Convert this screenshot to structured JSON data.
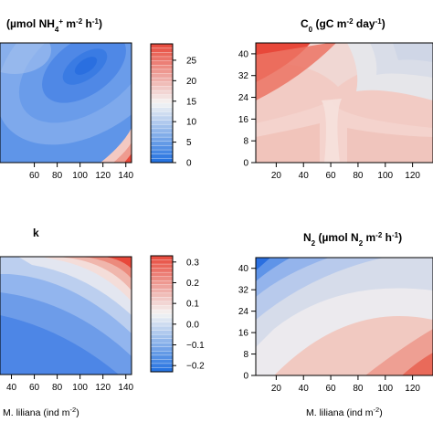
{
  "chart_data": [
    {
      "type": "heatmap",
      "panel": "top-left",
      "title": "(µmol NH",
      "title_sub": "4",
      "title_sup": "+",
      "title_rest": " m",
      "title_exp1": "-2",
      "title_tail": " h",
      "title_exp2": "-1",
      "title_close": ")",
      "x_ticks": [
        "60",
        "80",
        "100",
        "120",
        "140"
      ],
      "x_tick_values": [
        60,
        80,
        100,
        120,
        140
      ],
      "xlim": [
        30,
        145
      ],
      "ylim": [
        0,
        44
      ],
      "xlabel": "",
      "ylabel": "",
      "colorbar": {
        "ticks": [
          "0",
          "5",
          "10",
          "15",
          "20",
          "25"
        ],
        "tick_values": [
          0,
          5,
          10,
          15,
          20,
          25
        ],
        "range": [
          0,
          29
        ]
      },
      "surface": {
        "min_at": [
          112,
          30
        ],
        "note_low": "blue",
        "high_corner": "bottom-right"
      }
    },
    {
      "type": "heatmap",
      "panel": "top-right",
      "title": "C",
      "title_sub": "0",
      "title_rest": " (gC m",
      "title_exp1": "-2",
      "title_tail": " day",
      "title_exp2": "-1",
      "title_close": ")",
      "x_ticks": [
        "20",
        "40",
        "60",
        "80",
        "100",
        "120"
      ],
      "x_tick_values": [
        20,
        40,
        60,
        80,
        100,
        120
      ],
      "y_ticks": [
        "0",
        "8",
        "16",
        "24",
        "32",
        "40"
      ],
      "y_tick_values": [
        0,
        8,
        16,
        24,
        32,
        40
      ],
      "xlim": [
        5,
        135
      ],
      "ylim": [
        0,
        44
      ],
      "xlabel": "",
      "ylabel": ""
    },
    {
      "type": "heatmap",
      "panel": "bottom-left",
      "title": "k",
      "x_ticks": [
        "40",
        "60",
        "80",
        "100",
        "120",
        "140"
      ],
      "x_tick_values": [
        40,
        60,
        80,
        100,
        120,
        140
      ],
      "xlim": [
        30,
        145
      ],
      "ylim": [
        0,
        44
      ],
      "xlabel": "M. liliana (ind m",
      "xlabel_exp": "-2",
      "xlabel_close": ")",
      "colorbar": {
        "ticks": [
          "0.3",
          "0.2",
          "0.1",
          "0.0",
          "−0.1",
          "−0.2"
        ],
        "tick_values": [
          0.3,
          0.2,
          0.1,
          0.0,
          -0.1,
          -0.2
        ],
        "range": [
          -0.23,
          0.33
        ]
      }
    },
    {
      "type": "heatmap",
      "panel": "bottom-right",
      "title": "N",
      "title_sub": "2",
      "title_rest": " (µmol N",
      "title_sub2": "2",
      "title_rest2": " m",
      "title_exp1": "-2",
      "title_tail": " h",
      "title_exp2": "-1",
      "title_close": ")",
      "x_ticks": [
        "20",
        "40",
        "60",
        "80",
        "100",
        "120"
      ],
      "x_tick_values": [
        20,
        40,
        60,
        80,
        100,
        120
      ],
      "y_ticks": [
        "0",
        "8",
        "16",
        "24",
        "32",
        "40"
      ],
      "y_tick_values": [
        0,
        8,
        16,
        24,
        32,
        40
      ],
      "xlim": [
        5,
        135
      ],
      "ylim": [
        0,
        44
      ],
      "xlabel": "M. liliana (ind m",
      "xlabel_exp": "-2",
      "xlabel_close": ")"
    }
  ],
  "colors": {
    "low": "#1f6fe0",
    "mid": "#f4f4f4",
    "high": "#e8483a",
    "frame": "#000000"
  }
}
